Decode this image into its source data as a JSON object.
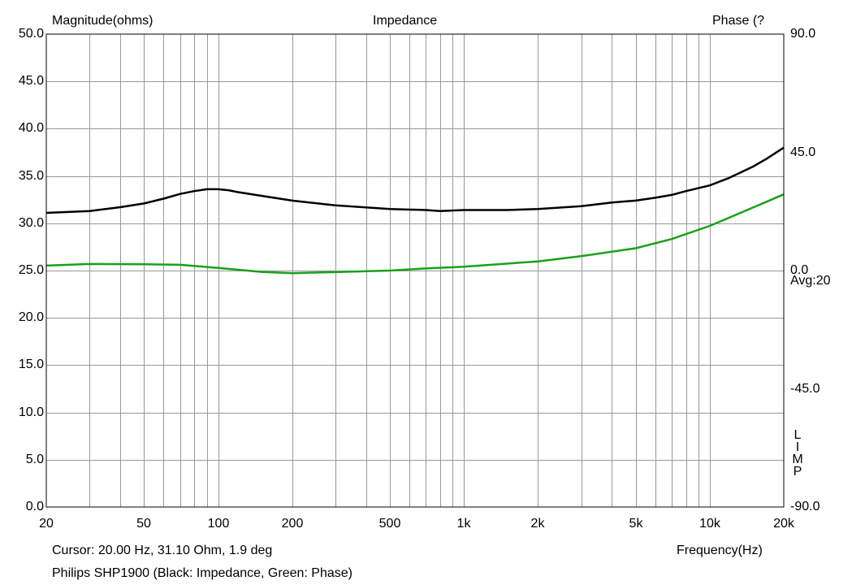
{
  "chart_data": {
    "type": "line",
    "title": "Impedance",
    "ylabel_left": "Magnitude(ohms)",
    "ylabel_right": "Phase (?",
    "xlabel": "Frequency(Hz)",
    "x_scale": "log",
    "xlim": [
      20,
      20000
    ],
    "ylim_left": [
      0,
      50
    ],
    "ylim_right": [
      -90,
      90
    ],
    "grid": true,
    "x_tick_values": [
      20,
      50,
      100,
      200,
      500,
      1000,
      2000,
      5000,
      10000,
      20000
    ],
    "x_tick_labels": [
      "20",
      "50",
      "100",
      "200",
      "500",
      "1k",
      "2k",
      "5k",
      "10k",
      "20k"
    ],
    "y_left_tick_values": [
      0,
      5,
      10,
      15,
      20,
      25,
      30,
      35,
      40,
      45,
      50
    ],
    "y_left_tick_labels": [
      "0.0",
      "5.0",
      "10.0",
      "15.0",
      "20.0",
      "25.0",
      "30.0",
      "35.0",
      "40.0",
      "45.0",
      "50.0"
    ],
    "y_right_tick_values": [
      90,
      45,
      0,
      -45,
      -90
    ],
    "y_right_tick_labels": [
      "90.0",
      "45.0",
      "0.0",
      "-45.0",
      "-90.0"
    ],
    "series": [
      {
        "axis": "left",
        "color": "#000000",
        "x": [
          20,
          30,
          40,
          50,
          60,
          70,
          80,
          90,
          100,
          110,
          120,
          150,
          200,
          300,
          500,
          700,
          800,
          1000,
          1500,
          2000,
          3000,
          4000,
          5000,
          6000,
          7000,
          8000,
          10000,
          12000,
          15000,
          17000,
          20000
        ],
        "y": [
          31.1,
          31.3,
          31.7,
          32.1,
          32.6,
          33.1,
          33.4,
          33.6,
          33.6,
          33.5,
          33.3,
          32.9,
          32.4,
          31.9,
          31.5,
          31.4,
          31.3,
          31.4,
          31.4,
          31.5,
          31.8,
          32.2,
          32.4,
          32.7,
          33.0,
          33.4,
          34.0,
          34.8,
          36.0,
          36.8,
          38.0
        ]
      },
      {
        "axis": "right",
        "color": "#1aa01a",
        "x": [
          20,
          30,
          50,
          70,
          100,
          150,
          200,
          300,
          500,
          700,
          1000,
          2000,
          3000,
          5000,
          7000,
          10000,
          15000,
          20000
        ],
        "y": [
          1.9,
          2.5,
          2.4,
          2.2,
          1.0,
          -0.5,
          -1.0,
          -0.6,
          0.0,
          0.8,
          1.5,
          3.5,
          5.5,
          8.5,
          12.0,
          17.0,
          24.0,
          29.0
        ]
      }
    ],
    "side_text": "Avg:20",
    "vertical_text": "LIMP",
    "cursor_text": "Cursor: 20.00 Hz, 31.10 Ohm, 1.9 deg",
    "caption": "Philips SHP1900 (Black: Impedance, Green: Phase)"
  }
}
